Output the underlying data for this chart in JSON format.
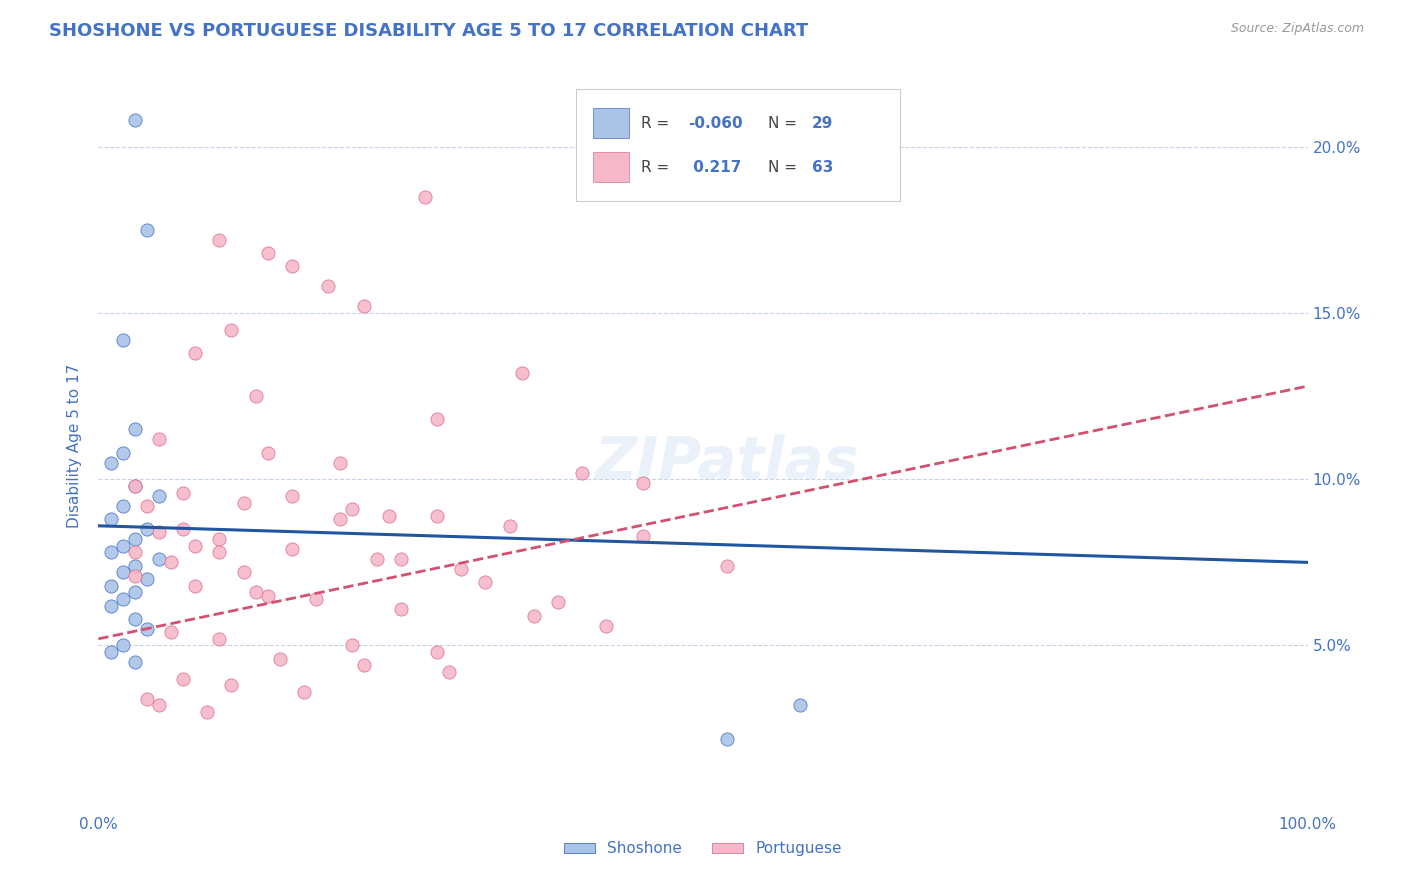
{
  "title": "SHOSHONE VS PORTUGUESE DISABILITY AGE 5 TO 17 CORRELATION CHART",
  "source": "Source: ZipAtlas.com",
  "ylabel": "Disability Age 5 to 17",
  "x_min": 0.0,
  "x_max": 100.0,
  "y_min": 0.0,
  "y_max": 22.0,
  "y_tick_values": [
    5.0,
    10.0,
    15.0,
    20.0
  ],
  "watermark": "ZIPatlas",
  "shoshone_color": "#aac4e8",
  "shoshone_edge_color": "#4472c4",
  "portuguese_color": "#f5b8c8",
  "portuguese_edge_color": "#e07090",
  "shoshone_line_color": "#2055a0",
  "portuguese_line_color": "#d45070",
  "title_color": "#4472c4",
  "label_color": "#4472c4",
  "tick_color": "#4472c4",
  "background_color": "#ffffff",
  "grid_color": "#c8d4e8",
  "shoshone_R": -0.06,
  "shoshone_N": 29,
  "portuguese_R": 0.217,
  "portuguese_N": 63,
  "shoshone_line_y0": 8.6,
  "shoshone_line_y100": 7.5,
  "portuguese_line_y0": 5.2,
  "portuguese_line_y100": 12.8,
  "shoshone_x": [
    3,
    2,
    4,
    3,
    2,
    1,
    3,
    5,
    2,
    1,
    4,
    3,
    2,
    1,
    5,
    3,
    2,
    4,
    1,
    3,
    2,
    1,
    4,
    3,
    2,
    1,
    3,
    58,
    52
  ],
  "shoshone_y": [
    20.8,
    14.2,
    17.5,
    11.5,
    10.8,
    10.5,
    9.8,
    9.5,
    9.2,
    8.8,
    8.5,
    8.2,
    8.0,
    7.8,
    7.6,
    7.4,
    7.2,
    7.0,
    6.8,
    6.6,
    6.4,
    6.2,
    5.5,
    5.8,
    5.0,
    4.8,
    4.5,
    3.2,
    2.2
  ],
  "portuguese_x": [
    27,
    10,
    14,
    16,
    19,
    22,
    11,
    8,
    35,
    13,
    28,
    5,
    14,
    20,
    40,
    45,
    3,
    7,
    12,
    21,
    24,
    34,
    5,
    10,
    16,
    23,
    30,
    3,
    8,
    13,
    18,
    25,
    36,
    42,
    6,
    10,
    21,
    28,
    15,
    22,
    29,
    7,
    11,
    17,
    4,
    5,
    9,
    3,
    6,
    8,
    12,
    16,
    20,
    25,
    32,
    38,
    4,
    7,
    10,
    14,
    45,
    52,
    28
  ],
  "portuguese_y": [
    18.5,
    17.2,
    16.8,
    16.4,
    15.8,
    15.2,
    14.5,
    13.8,
    13.2,
    12.5,
    11.8,
    11.2,
    10.8,
    10.5,
    10.2,
    9.9,
    9.8,
    9.6,
    9.3,
    9.1,
    8.9,
    8.6,
    8.4,
    8.2,
    7.9,
    7.6,
    7.3,
    7.1,
    6.8,
    6.6,
    6.4,
    6.1,
    5.9,
    5.6,
    5.4,
    5.2,
    5.0,
    4.8,
    4.6,
    4.4,
    4.2,
    4.0,
    3.8,
    3.6,
    3.4,
    3.2,
    3.0,
    7.8,
    7.5,
    8.0,
    7.2,
    9.5,
    8.8,
    7.6,
    6.9,
    6.3,
    9.2,
    8.5,
    7.8,
    6.5,
    8.3,
    7.4,
    8.9
  ]
}
